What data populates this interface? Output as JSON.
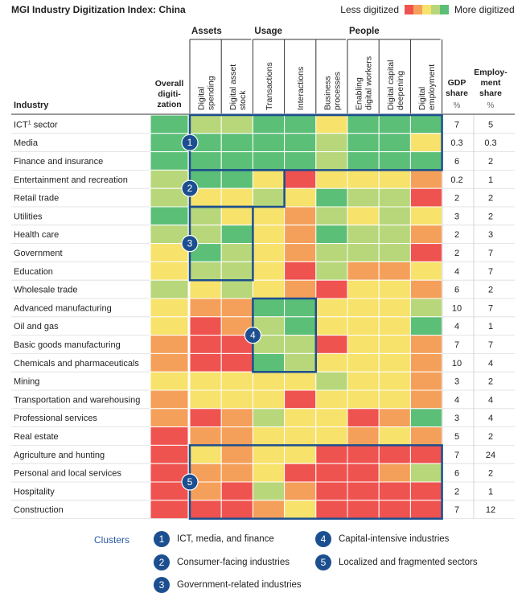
{
  "title": "MGI Industry Digitization Index: China",
  "legend": {
    "less": "Less digitized",
    "more": "More digitized",
    "colors": [
      "#ef5350",
      "#f5a05a",
      "#f7e26b",
      "#b7d77a",
      "#5cbf77"
    ]
  },
  "chart_data": {
    "type": "heatmap",
    "row_header": "Industry",
    "overall_header": [
      "Overall",
      "digiti-",
      "zation"
    ],
    "groups": [
      {
        "label": "Assets",
        "columns": [
          1,
          2
        ]
      },
      {
        "label": "Usage",
        "columns": [
          3,
          4,
          5
        ]
      },
      {
        "label": "People",
        "columns": [
          6,
          7,
          8
        ]
      }
    ],
    "columns": [
      [
        "Digital",
        "spending"
      ],
      [
        "Digital asset",
        "stock"
      ],
      [
        "Transactions"
      ],
      [
        "Interactions"
      ],
      [
        "Business",
        "processes"
      ],
      [
        "Enabling",
        "digital workers"
      ],
      [
        "Digital capital",
        "deepening"
      ],
      [
        "Digital",
        "employment"
      ]
    ],
    "extra_headers": {
      "gdp": [
        "GDP",
        "share",
        "%"
      ],
      "emp": [
        "Employ-",
        "ment",
        "share",
        "%"
      ]
    },
    "level_scale": "1 = least digitized, 5 = most digitized",
    "rows": [
      {
        "industry": "ICT",
        "sup": "1",
        "suffix": " sector",
        "overall": 5,
        "cells": [
          4,
          4,
          5,
          5,
          3,
          5,
          5,
          5
        ],
        "gdp": "7",
        "emp": "5"
      },
      {
        "industry": "Media",
        "overall": 5,
        "cells": [
          5,
          5,
          5,
          5,
          4,
          5,
          5,
          3
        ],
        "gdp": "0.3",
        "emp": "0.3"
      },
      {
        "industry": "Finance and insurance",
        "overall": 5,
        "cells": [
          5,
          5,
          5,
          5,
          4,
          5,
          5,
          5
        ],
        "gdp": "6",
        "emp": "2"
      },
      {
        "industry": "Entertainment and recreation",
        "overall": 4,
        "cells": [
          5,
          5,
          3,
          1,
          3,
          3,
          3,
          2
        ],
        "gdp": "0.2",
        "emp": "1"
      },
      {
        "industry": "Retail trade",
        "overall": 4,
        "cells": [
          3,
          3,
          4,
          3,
          5,
          4,
          4,
          1
        ],
        "gdp": "2",
        "emp": "2"
      },
      {
        "industry": "Utilities",
        "overall": 5,
        "cells": [
          4,
          3,
          3,
          2,
          4,
          3,
          4,
          3
        ],
        "gdp": "3",
        "emp": "2"
      },
      {
        "industry": "Health care",
        "overall": 4,
        "cells": [
          4,
          5,
          3,
          2,
          5,
          4,
          4,
          2
        ],
        "gdp": "2",
        "emp": "3"
      },
      {
        "industry": "Government",
        "overall": 3,
        "cells": [
          5,
          4,
          3,
          2,
          4,
          4,
          4,
          1
        ],
        "gdp": "2",
        "emp": "7"
      },
      {
        "industry": "Education",
        "overall": 3,
        "cells": [
          4,
          4,
          3,
          1,
          4,
          2,
          2,
          3
        ],
        "gdp": "4",
        "emp": "7"
      },
      {
        "industry": "Wholesale trade",
        "overall": 4,
        "cells": [
          3,
          4,
          3,
          2,
          1,
          3,
          3,
          2
        ],
        "gdp": "6",
        "emp": "2"
      },
      {
        "industry": "Advanced manufacturing",
        "overall": 3,
        "cells": [
          2,
          2,
          5,
          5,
          3,
          3,
          3,
          4
        ],
        "gdp": "10",
        "emp": "7"
      },
      {
        "industry": "Oil and gas",
        "overall": 3,
        "cells": [
          1,
          2,
          4,
          5,
          3,
          3,
          3,
          5
        ],
        "gdp": "4",
        "emp": "1"
      },
      {
        "industry": "Basic goods manufacturing",
        "overall": 2,
        "cells": [
          1,
          1,
          4,
          4,
          1,
          3,
          3,
          2
        ],
        "gdp": "7",
        "emp": "7"
      },
      {
        "industry": "Chemicals and pharmaceuticals",
        "overall": 2,
        "cells": [
          1,
          1,
          5,
          4,
          3,
          3,
          3,
          2
        ],
        "gdp": "10",
        "emp": "4"
      },
      {
        "industry": "Mining",
        "overall": 3,
        "cells": [
          3,
          3,
          3,
          3,
          4,
          3,
          3,
          2
        ],
        "gdp": "3",
        "emp": "2"
      },
      {
        "industry": "Transportation and warehousing",
        "overall": 2,
        "cells": [
          3,
          3,
          3,
          1,
          3,
          3,
          3,
          2
        ],
        "gdp": "4",
        "emp": "4"
      },
      {
        "industry": "Professional services",
        "overall": 2,
        "cells": [
          1,
          2,
          4,
          3,
          3,
          1,
          2,
          5
        ],
        "gdp": "3",
        "emp": "4"
      },
      {
        "industry": "Real estate",
        "overall": 1,
        "cells": [
          2,
          2,
          3,
          3,
          3,
          2,
          3,
          2
        ],
        "gdp": "5",
        "emp": "2"
      },
      {
        "industry": "Agriculture and hunting",
        "overall": 1,
        "cells": [
          3,
          2,
          3,
          3,
          1,
          1,
          1,
          1
        ],
        "gdp": "7",
        "emp": "24"
      },
      {
        "industry": "Personal and local services",
        "overall": 1,
        "cells": [
          2,
          2,
          3,
          1,
          1,
          1,
          2,
          4
        ],
        "gdp": "6",
        "emp": "2"
      },
      {
        "industry": "Hospitality",
        "overall": 1,
        "cells": [
          2,
          1,
          4,
          2,
          1,
          1,
          1,
          1
        ],
        "gdp": "2",
        "emp": "1"
      },
      {
        "industry": "Construction",
        "overall": 1,
        "cells": [
          1,
          1,
          2,
          3,
          1,
          1,
          1,
          1
        ],
        "gdp": "7",
        "emp": "12"
      }
    ],
    "clusters": [
      {
        "num": "1",
        "label": "ICT, media, and finance"
      },
      {
        "num": "2",
        "label": "Consumer-facing industries"
      },
      {
        "num": "3",
        "label": "Government-related industries"
      },
      {
        "num": "4",
        "label": "Capital-intensive industries"
      },
      {
        "num": "5",
        "label": "Localized and fragmented sectors"
      }
    ]
  },
  "clusters_title": "Clusters"
}
